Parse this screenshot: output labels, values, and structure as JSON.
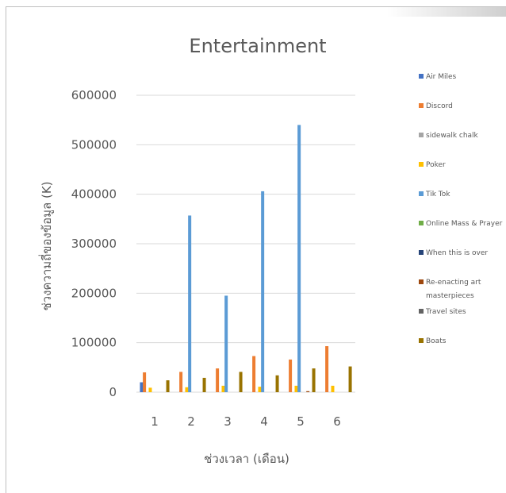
{
  "chart_data": {
    "type": "bar",
    "title": "Entertainment",
    "xlabel": "ช่วงเวลา (เดือน)",
    "ylabel": "ช่วงความถี่ของข้อมูล (K)",
    "categories": [
      "1",
      "2",
      "3",
      "4",
      "5",
      "6"
    ],
    "ylim": [
      0,
      600000
    ],
    "yticks": [
      "0",
      "100000",
      "200000",
      "300000",
      "400000",
      "500000",
      "600000"
    ],
    "grid": true,
    "legend_position": "right",
    "series": [
      {
        "name": "Air Miles",
        "color": "#4472c4",
        "values": [
          20000,
          null,
          null,
          null,
          null,
          null
        ]
      },
      {
        "name": "Discord",
        "color": "#ed7d31",
        "values": [
          40000,
          41000,
          48000,
          73000,
          66000,
          93000
        ]
      },
      {
        "name": "sidewalk chalk",
        "color": "#a5a5a5",
        "values": [
          null,
          null,
          null,
          null,
          null,
          null
        ]
      },
      {
        "name": "Poker",
        "color": "#ffc000",
        "values": [
          9000,
          10000,
          13000,
          11000,
          13000,
          13000
        ]
      },
      {
        "name": "Tik Tok",
        "color": "#5b9bd5",
        "values": [
          null,
          357000,
          195000,
          406000,
          540000,
          null
        ]
      },
      {
        "name": "Online Mass & Prayer",
        "color": "#70ad47",
        "values": [
          null,
          null,
          null,
          null,
          null,
          null
        ]
      },
      {
        "name": "When this is over",
        "color": "#264478",
        "values": [
          null,
          null,
          null,
          null,
          null,
          null
        ]
      },
      {
        "name": "Re-enacting art masterpieces",
        "color": "#9e480e",
        "values": [
          null,
          null,
          null,
          null,
          2000,
          null
        ]
      },
      {
        "name": "Travel sites",
        "color": "#636363",
        "values": [
          null,
          null,
          null,
          null,
          null,
          null
        ]
      },
      {
        "name": "Boats",
        "color": "#997300",
        "values": [
          24000,
          29000,
          41000,
          34000,
          48000,
          52000
        ]
      }
    ]
  }
}
